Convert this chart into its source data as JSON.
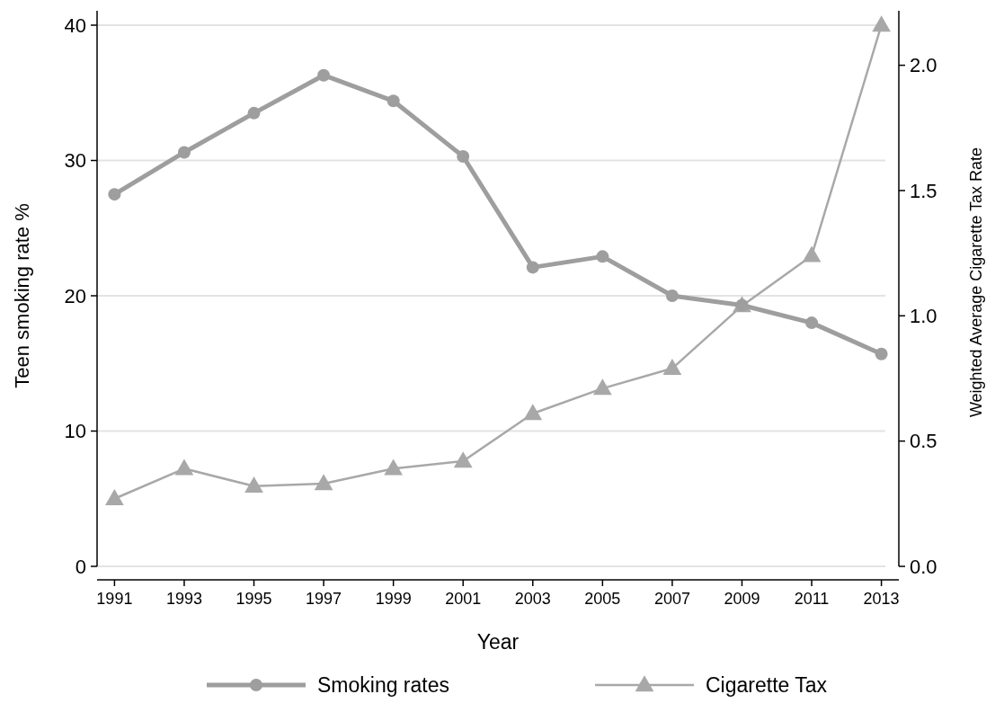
{
  "chart_data": {
    "type": "line",
    "xlabel": "Year",
    "ylabel": "Teen smoking rate %",
    "y2label": "Weighted Average Cigarette Tax Rate",
    "x": [
      1991,
      1993,
      1995,
      1997,
      1999,
      2001,
      2003,
      2005,
      2007,
      2009,
      2011,
      2013
    ],
    "xlim": [
      1990.5,
      2013.5
    ],
    "xticks": [
      1991,
      1993,
      1995,
      1997,
      1999,
      2001,
      2003,
      2005,
      2007,
      2009,
      2011,
      2013
    ],
    "ylim": [
      0,
      40
    ],
    "yticks": [
      0,
      10,
      20,
      30,
      40
    ],
    "y2lim": [
      0,
      2.16
    ],
    "y2ticks": [
      {
        "value": 0,
        "label": "0.0"
      },
      {
        "value": 0.5,
        "label": "0.5"
      },
      {
        "value": 1,
        "label": "1.0"
      },
      {
        "value": 1.5,
        "label": "1.5"
      },
      {
        "value": 2,
        "label": "2.0"
      }
    ],
    "grid": "y",
    "legend": "bottom",
    "series": [
      {
        "name": "Smoking rates",
        "color": "#9e9e9e",
        "marker": "circle",
        "values": [
          27.5,
          30.6,
          33.5,
          36.3,
          34.4,
          30.3,
          22.1,
          22.9,
          20.0,
          19.3,
          18.0,
          15.7
        ]
      },
      {
        "name": "Cigarette Tax",
        "color": "#a8a8a8",
        "marker": "triangle",
        "axis": "y2",
        "values": [
          0.27,
          0.39,
          0.32,
          0.33,
          0.39,
          0.42,
          0.61,
          0.71,
          0.79,
          1.04,
          1.24,
          2.16
        ]
      }
    ]
  }
}
